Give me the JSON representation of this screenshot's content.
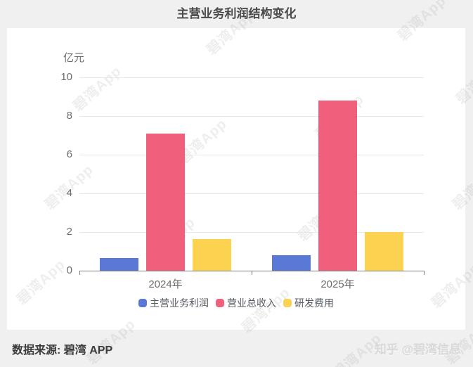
{
  "chart_data": {
    "type": "bar",
    "title": "主营业务利润结构变化",
    "unit_label": "亿元",
    "categories": [
      "2024年",
      "2025年"
    ],
    "series": [
      {
        "key": "main-business-profit",
        "name": "主营业务利润",
        "color": "#5A78D6",
        "values": [
          0.65,
          0.8
        ]
      },
      {
        "key": "total-operating-revenue",
        "name": "营业总收入",
        "color": "#F0607C",
        "values": [
          7.1,
          8.8
        ]
      },
      {
        "key": "rd-expense",
        "name": "研发费用",
        "color": "#FBD351",
        "values": [
          1.65,
          2.0
        ]
      }
    ],
    "ylim": [
      0,
      10
    ],
    "yticks": [
      0,
      2,
      4,
      6,
      8,
      10
    ],
    "grid": true,
    "legend_position": "bottom"
  },
  "footer": {
    "source": "数据来源: 碧湾 APP",
    "credit": "知乎 @碧湾信息"
  },
  "watermark": {
    "text": "碧湾App"
  }
}
